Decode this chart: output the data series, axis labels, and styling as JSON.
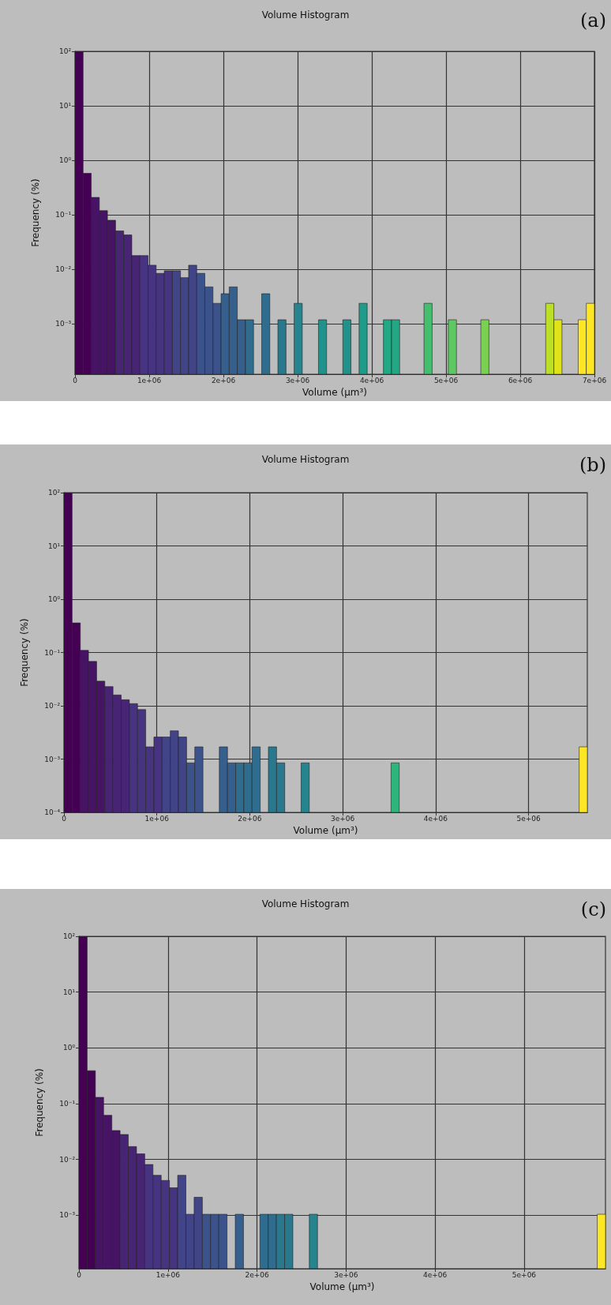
{
  "chart_data": [
    {
      "type": "histogram",
      "title": "Volume Histogram",
      "xlabel": "Volume (μm³)",
      "ylabel": "Frequency (%)",
      "annotations": [
        "(a)"
      ],
      "log": "y",
      "grid": true,
      "bins": [
        0,
        109375,
        218750,
        328125,
        437500,
        546875,
        656250,
        765625,
        875000,
        984375,
        1093750,
        1203125,
        1312500,
        1421875,
        1531250,
        1640625,
        1750000,
        1859375,
        1968750,
        2078125,
        2187500,
        2296875,
        2406250,
        2515625,
        2625000,
        2734375,
        2843750,
        2953125,
        3062500,
        3171875,
        3281250,
        3390625,
        3500000,
        3609375,
        3718750,
        3828125,
        3937500,
        4046875,
        4156250,
        4265625,
        4375000,
        4484375,
        4593750,
        4703125,
        4812500,
        4921875,
        5031250,
        5140625,
        5250000,
        5359375,
        5468750,
        5578125,
        5687500,
        5796875,
        5906250,
        6015625,
        6125000,
        6234375,
        6343750,
        6453125,
        6562500,
        6671875,
        6781250,
        6890625,
        7000000
      ],
      "values": [
        99,
        0.58,
        0.21,
        0.12,
        0.08,
        0.051,
        0.043,
        0.018,
        0.018,
        0.012,
        0.0085,
        0.0095,
        0.0095,
        0.0071,
        0.012,
        0.0085,
        0.0048,
        0.0024,
        0.0036,
        0.0048,
        0.0012,
        0.0012,
        null,
        0.0036,
        null,
        0.0012,
        null,
        0.0024,
        null,
        null,
        0.0012,
        null,
        null,
        0.0012,
        null,
        0.0024,
        null,
        null,
        0.0012,
        0.0012,
        null,
        null,
        null,
        0.0024,
        null,
        null,
        0.0012,
        null,
        null,
        null,
        0.0012,
        null,
        null,
        null,
        null,
        null,
        null,
        null,
        0.0024,
        0.0012,
        null,
        null,
        0.0012,
        0.0024
      ],
      "colors": [
        "#440154",
        "#440154",
        "#471365",
        "#471365",
        "#471365",
        "#482475",
        "#482475",
        "#482475",
        "#463480",
        "#463480",
        "#463480",
        "#463480",
        "#414487",
        "#414487",
        "#414487",
        "#3b528b",
        "#3b528b",
        "#3b528b",
        "#355f8d",
        "#355f8d",
        "#355f8d",
        "#2f6c8e",
        null,
        "#2f6c8e",
        null,
        "#2a788e",
        null,
        "#25848e",
        null,
        null,
        "#21918c",
        null,
        null,
        "#21918c",
        null,
        "#1e9c89",
        null,
        null,
        "#22a884",
        "#22a884",
        null,
        null,
        null,
        "#44bf70",
        null,
        null,
        "#5ec962",
        null,
        null,
        null,
        "#7ad151",
        null,
        null,
        null,
        null,
        null,
        null,
        null,
        "#bddf26",
        "#dfe318",
        null,
        null,
        "#fde725",
        "#fde725"
      ],
      "xlim": [
        0,
        7000000
      ],
      "xticks": [
        {
          "value": 0,
          "label": "0"
        },
        {
          "value": 1000000,
          "label": "1e+06"
        },
        {
          "value": 2000000,
          "label": "2e+06"
        },
        {
          "value": 3000000,
          "label": "3e+06"
        },
        {
          "value": 4000000,
          "label": "4e+06"
        },
        {
          "value": 5000000,
          "label": "5e+06"
        },
        {
          "value": 6000000,
          "label": "6e+06"
        },
        {
          "value": 7000000,
          "label": "7e+06"
        }
      ],
      "ylim": [
        0.00012,
        100
      ],
      "yticks": [
        {
          "value": 0.001,
          "label": "10⁻³"
        },
        {
          "value": 0.01,
          "label": "10⁻²"
        },
        {
          "value": 0.1,
          "label": "10⁻¹"
        },
        {
          "value": 1,
          "label": "10⁰"
        },
        {
          "value": 10,
          "label": "10¹"
        },
        {
          "value": 100,
          "label": "10²"
        }
      ]
    },
    {
      "type": "histogram",
      "title": "Volume Histogram",
      "xlabel": "Volume (μm³)",
      "ylabel": "Frequency (%)",
      "annotations": [
        "(b)"
      ],
      "log": "y",
      "grid": true,
      "bins": [
        0,
        88000,
        176000,
        264000,
        352000,
        440000,
        528000,
        616000,
        704000,
        792000,
        880000,
        968000,
        1056000,
        1144000,
        1232000,
        1320000,
        1408000,
        1496000,
        1584000,
        1672000,
        1760000,
        1848000,
        1936000,
        2024000,
        2112000,
        2200000,
        2288000,
        2376000,
        2464000,
        2552000,
        2640000,
        2728000,
        2816000,
        2904000,
        2992000,
        3080000,
        3168000,
        3256000,
        3344000,
        3432000,
        3520000,
        3608000,
        3696000,
        3784000,
        3872000,
        3960000,
        4048000,
        4136000,
        4224000,
        4312000,
        4400000,
        4488000,
        4576000,
        4664000,
        4752000,
        4840000,
        4928000,
        5016000,
        5104000,
        5192000,
        5280000,
        5368000,
        5456000,
        5544000,
        5632000
      ],
      "values": [
        99,
        0.36,
        0.11,
        0.068,
        0.029,
        0.023,
        0.016,
        0.013,
        0.011,
        0.0085,
        0.0017,
        0.0026,
        0.0026,
        0.0034,
        0.0026,
        0.00085,
        0.0017,
        null,
        null,
        0.0017,
        0.00085,
        0.00085,
        0.00085,
        0.0017,
        null,
        0.0017,
        0.00085,
        null,
        null,
        0.00085,
        null,
        null,
        null,
        null,
        null,
        null,
        null,
        null,
        null,
        null,
        0.00085,
        null,
        null,
        null,
        null,
        null,
        null,
        null,
        null,
        null,
        null,
        null,
        null,
        null,
        null,
        null,
        null,
        null,
        null,
        null,
        null,
        null,
        null,
        0.0017
      ],
      "colors": [
        "#440154",
        "#440154",
        "#471365",
        "#471365",
        "#471365",
        "#482475",
        "#482475",
        "#482475",
        "#463480",
        "#463480",
        "#463480",
        "#463480",
        "#414487",
        "#414487",
        "#414487",
        "#3b528b",
        "#3b528b",
        null,
        null,
        "#355f8d",
        "#355f8d",
        "#2f6c8e",
        "#2f6c8e",
        "#2f6c8e",
        null,
        "#2a788e",
        "#2a788e",
        null,
        null,
        "#25848e",
        null,
        null,
        null,
        null,
        null,
        null,
        null,
        null,
        null,
        null,
        "#2fb47c",
        null,
        null,
        null,
        null,
        null,
        null,
        null,
        null,
        null,
        null,
        null,
        null,
        null,
        null,
        null,
        null,
        null,
        null,
        null,
        null,
        null,
        null,
        "#fde725"
      ],
      "xlim": [
        0,
        5632000
      ],
      "xticks": [
        {
          "value": 0,
          "label": "0"
        },
        {
          "value": 1000000,
          "label": "1e+06"
        },
        {
          "value": 2000000,
          "label": "2e+06"
        },
        {
          "value": 3000000,
          "label": "3e+06"
        },
        {
          "value": 4000000,
          "label": "4e+06"
        },
        {
          "value": 5000000,
          "label": "5e+06"
        }
      ],
      "ylim": [
        0.0001,
        100
      ],
      "yticks": [
        {
          "value": 0.0001,
          "label": "10⁻⁴"
        },
        {
          "value": 0.001,
          "label": "10⁻³"
        },
        {
          "value": 0.01,
          "label": "10⁻²"
        },
        {
          "value": 0.1,
          "label": "10⁻¹"
        },
        {
          "value": 1,
          "label": "10⁰"
        },
        {
          "value": 10,
          "label": "10¹"
        },
        {
          "value": 100,
          "label": "10²"
        }
      ]
    },
    {
      "type": "histogram",
      "title": "Volume Histogram",
      "xlabel": "Volume (μm³)",
      "ylabel": "Frequency (%)",
      "annotations": [
        "(c)"
      ],
      "log": "y",
      "grid": true,
      "bins": [
        0,
        92400,
        184800,
        277200,
        369600,
        462000,
        554400,
        646800,
        739200,
        831600,
        924000,
        1016400,
        1108800,
        1201200,
        1293600,
        1386000,
        1478400,
        1570800,
        1663200,
        1755600,
        1848000,
        1940400,
        2032800,
        2125200,
        2217600,
        2310000,
        2402400,
        2494800,
        2587200,
        2679600,
        2772000,
        2864400,
        2956800,
        3049200,
        3141600,
        3234000,
        3326400,
        3418800,
        3511200,
        3603600,
        3696000,
        3788400,
        3880800,
        3973200,
        4065600,
        4158000,
        4250400,
        4342800,
        4435200,
        4527600,
        4620000,
        4712400,
        4804800,
        4897200,
        4989600,
        5082000,
        5174400,
        5266800,
        5359200,
        5451600,
        5544000,
        5636400,
        5728800,
        5821200,
        5913600
      ],
      "values": [
        99,
        0.39,
        0.13,
        0.062,
        0.033,
        0.028,
        0.017,
        0.0126,
        0.0081,
        0.0052,
        0.0042,
        0.0031,
        0.0052,
        0.00104,
        0.0021,
        0.00104,
        0.00104,
        0.00104,
        null,
        0.00104,
        null,
        null,
        0.00104,
        0.00104,
        0.00104,
        0.00104,
        null,
        null,
        0.00104,
        null,
        null,
        null,
        null,
        null,
        null,
        null,
        null,
        null,
        null,
        null,
        null,
        null,
        null,
        null,
        null,
        null,
        null,
        null,
        null,
        null,
        null,
        null,
        null,
        null,
        null,
        null,
        null,
        null,
        null,
        null,
        null,
        null,
        null,
        0.00104
      ],
      "colors": [
        "#440154",
        "#440154",
        "#471365",
        "#471365",
        "#471365",
        "#482475",
        "#482475",
        "#482475",
        "#463480",
        "#463480",
        "#463480",
        "#463480",
        "#414487",
        "#414487",
        "#414487",
        "#3b528b",
        "#3b528b",
        "#3b528b",
        null,
        "#355f8d",
        null,
        null,
        "#2f6c8e",
        "#2f6c8e",
        "#2a788e",
        "#2a788e",
        null,
        null,
        "#25848e",
        null,
        null,
        null,
        null,
        null,
        null,
        null,
        null,
        null,
        null,
        null,
        null,
        null,
        null,
        null,
        null,
        null,
        null,
        null,
        null,
        null,
        null,
        null,
        null,
        null,
        null,
        null,
        null,
        null,
        null,
        null,
        null,
        null,
        null,
        "#fde725"
      ],
      "xlim": [
        0,
        5913600
      ],
      "xticks": [
        {
          "value": 0,
          "label": "0"
        },
        {
          "value": 1000000,
          "label": "1e+06"
        },
        {
          "value": 2000000,
          "label": "2e+06"
        },
        {
          "value": 3000000,
          "label": "3e+06"
        },
        {
          "value": 4000000,
          "label": "4e+06"
        },
        {
          "value": 5000000,
          "label": "5e+06"
        }
      ],
      "ylim": [
        0.00011,
        100
      ],
      "yticks": [
        {
          "value": 0.001,
          "label": "10⁻³"
        },
        {
          "value": 0.01,
          "label": "10⁻²"
        },
        {
          "value": 0.1,
          "label": "10⁻¹"
        },
        {
          "value": 1,
          "label": "10⁰"
        },
        {
          "value": 10,
          "label": "10¹"
        },
        {
          "value": 100,
          "label": "10²"
        }
      ]
    }
  ]
}
